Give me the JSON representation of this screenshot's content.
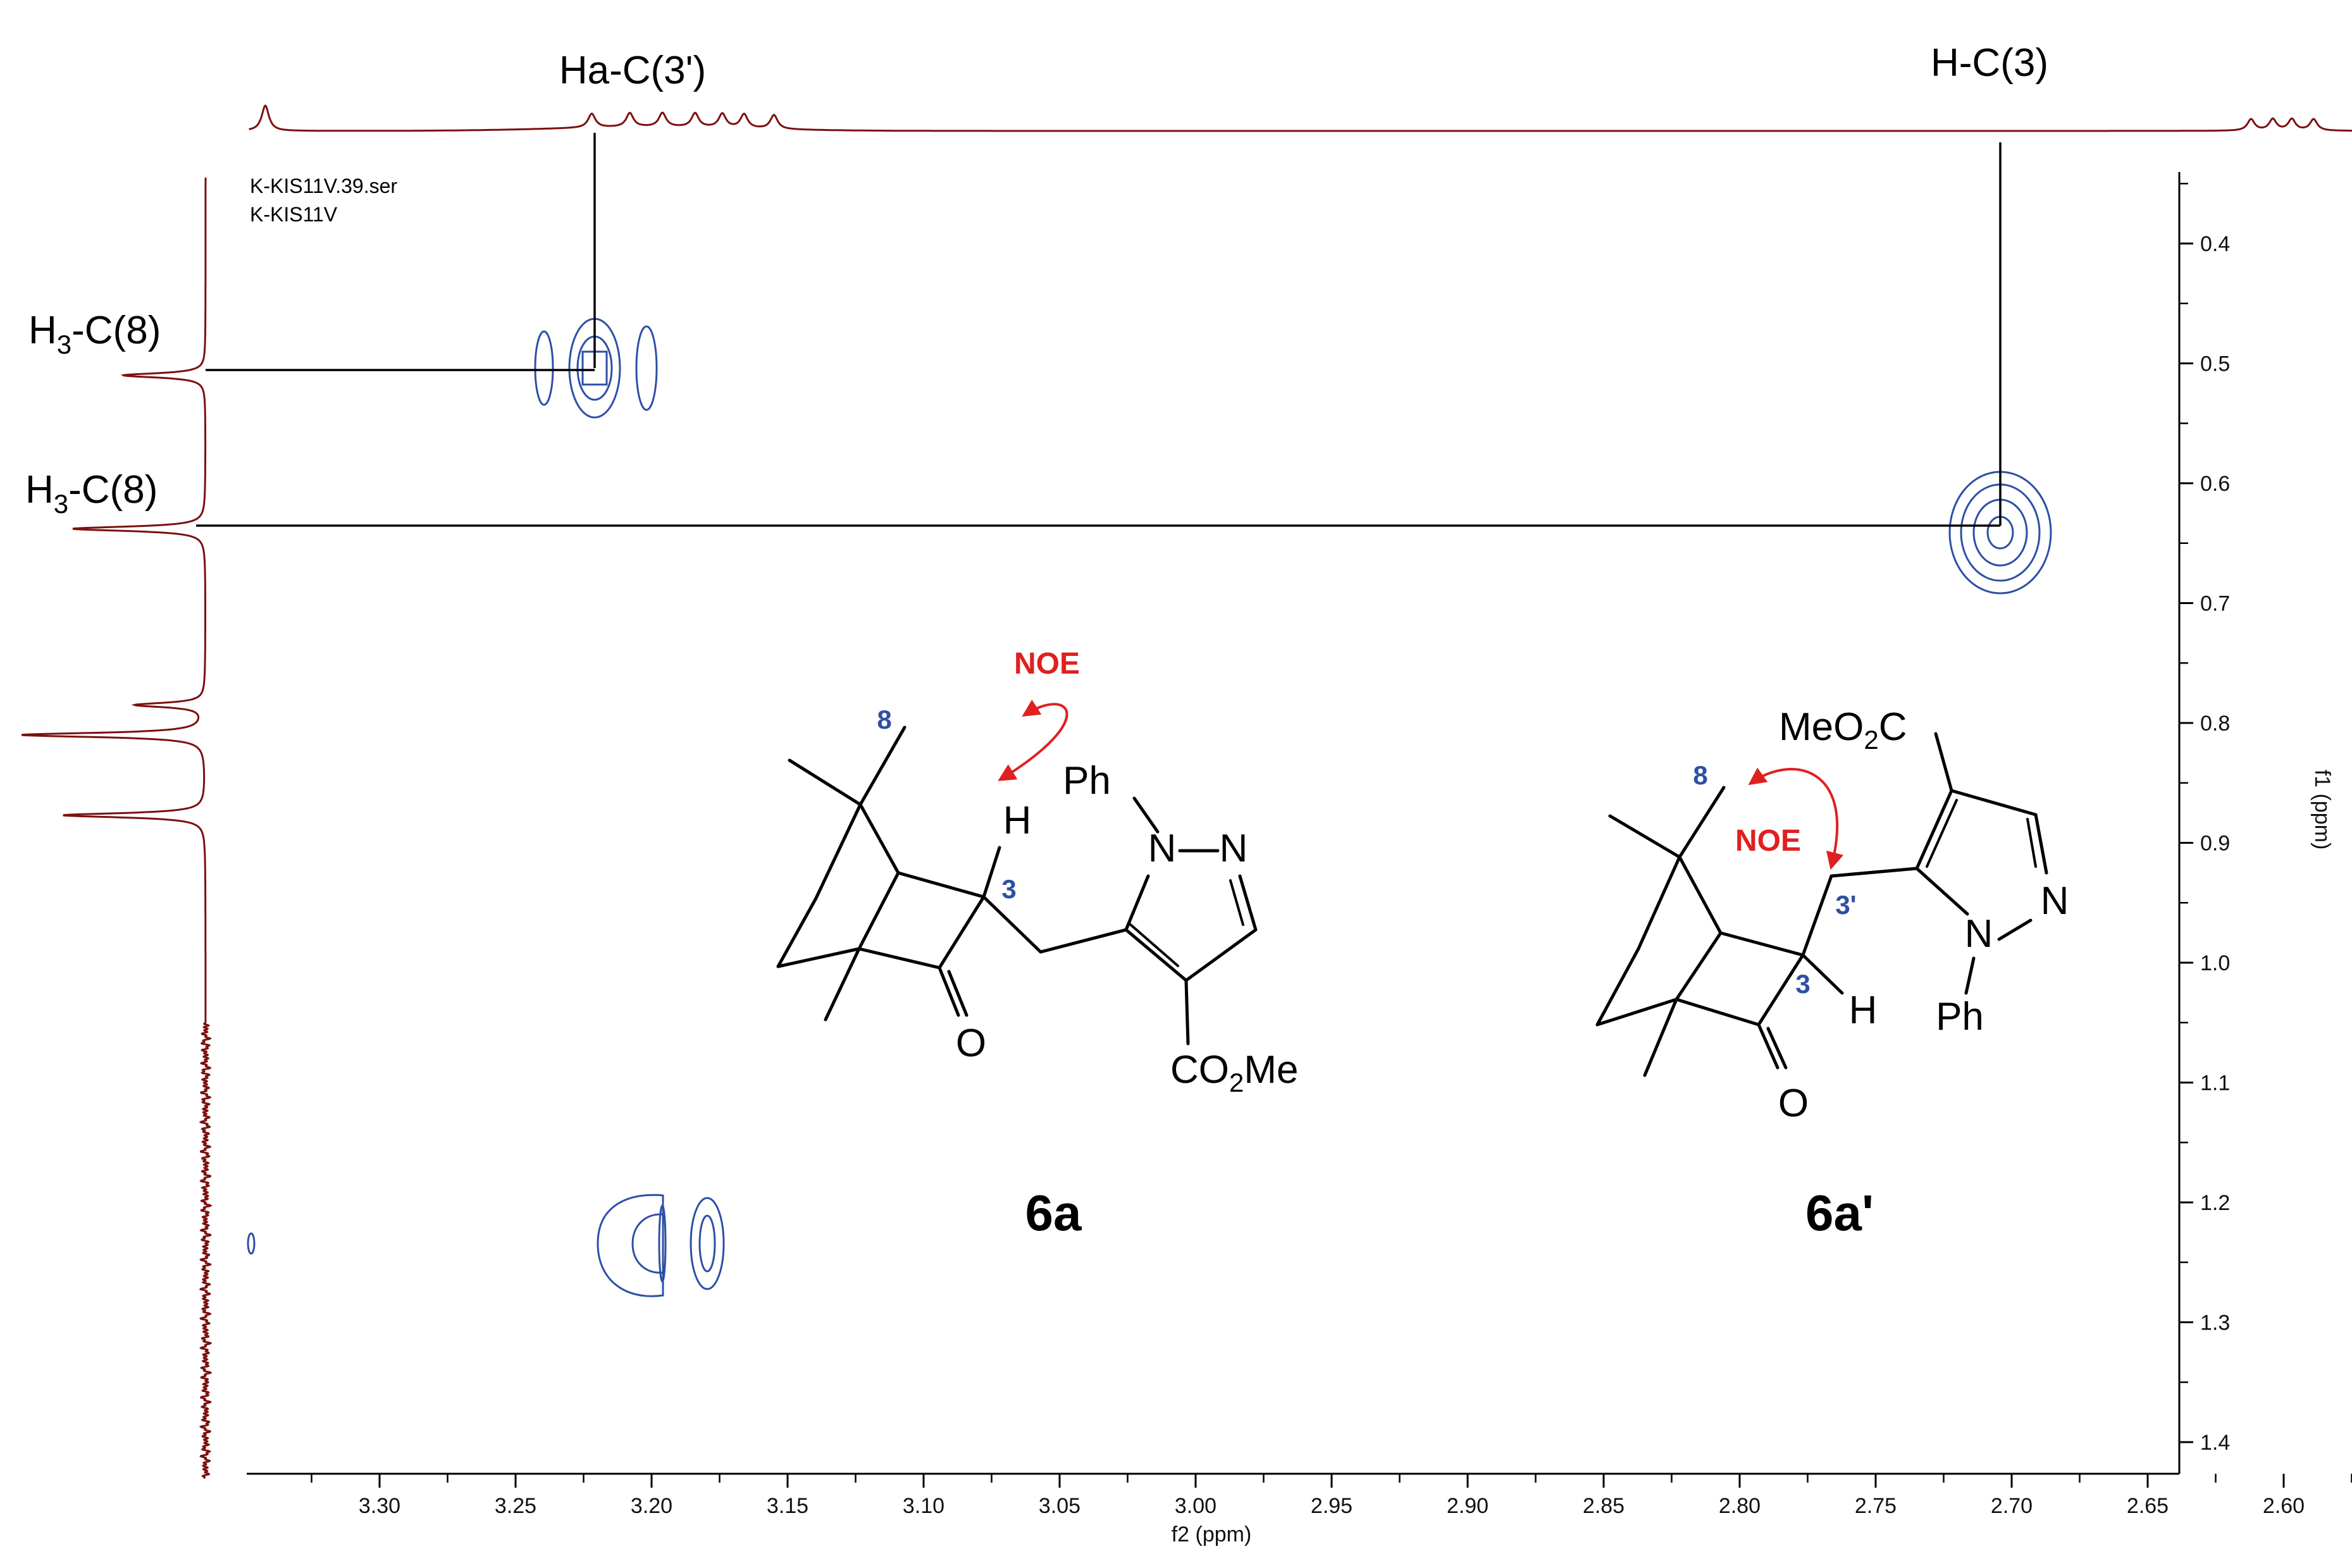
{
  "chart_data": {
    "type": "heatmap",
    "subtype": "2D NOESY NMR contour plot",
    "meta_lines": [
      "K-KIS11V.39.ser",
      "K-KIS11V"
    ],
    "xlabel": "f2 (ppm)",
    "ylabel": "f1 (ppm)",
    "x_range": [
      3.348,
      2.518
    ],
    "y_range": [
      0.345,
      1.435
    ],
    "x_ticks": [
      "3.30",
      "3.25",
      "3.20",
      "3.15",
      "3.10",
      "3.05",
      "3.00",
      "2.95",
      "2.90",
      "2.85",
      "2.80",
      "2.75",
      "2.70",
      "2.65",
      "2.60",
      "2.55"
    ],
    "y_ticks": [
      "0.4",
      "0.5",
      "0.6",
      "0.7",
      "0.8",
      "0.9",
      "1.0",
      "1.1",
      "1.2",
      "1.3",
      "1.4"
    ],
    "colors": {
      "projection": "#7b1010",
      "contour": "#2d4fa6",
      "noe_arrow": "#e02020",
      "atom_number": "#2e4fa3"
    },
    "cross_peaks": [
      {
        "x": 3.2,
        "y": 0.51,
        "note": "Ha-C(3') / H3-C(8)"
      },
      {
        "x": 3.228,
        "y": 0.51
      },
      {
        "x": 3.18,
        "y": 0.51
      },
      {
        "x": 2.598,
        "y": 0.635,
        "note": "H-C(3) / H3-C(8)"
      },
      {
        "x": 3.195,
        "y": 1.24
      },
      {
        "x": 3.17,
        "y": 1.24
      },
      {
        "x": 3.345,
        "y": 1.24
      }
    ],
    "f2_projection_peaks": [
      3.342,
      3.222,
      3.208,
      3.196,
      3.184,
      3.174,
      3.166,
      3.155,
      2.612,
      2.604,
      2.597,
      2.589
    ],
    "f1_projection_peaks": [
      0.51,
      0.638,
      0.785,
      0.81,
      0.877
    ],
    "annotations": {
      "top_left": "Ha-C(3')",
      "top_right": "H-C(3)",
      "left_upper": "H3-C(8)",
      "left_lower": "H3-C(8)"
    }
  },
  "structures": {
    "compound_a": {
      "label": "6a",
      "noe": "NOE",
      "atom_8": "8",
      "atom_3": "3",
      "H": "H",
      "O": "O",
      "N1": "N",
      "N2": "N",
      "phenyl": "Ph",
      "ester": "CO2Me"
    },
    "compound_b": {
      "label": "6a'",
      "noe": "NOE",
      "atom_8": "8",
      "atom_3": "3",
      "atom_3p": "3'",
      "H": "H",
      "O": "O",
      "N1": "N",
      "N2": "N",
      "phenyl": "Ph",
      "ester": "MeO2C"
    }
  }
}
